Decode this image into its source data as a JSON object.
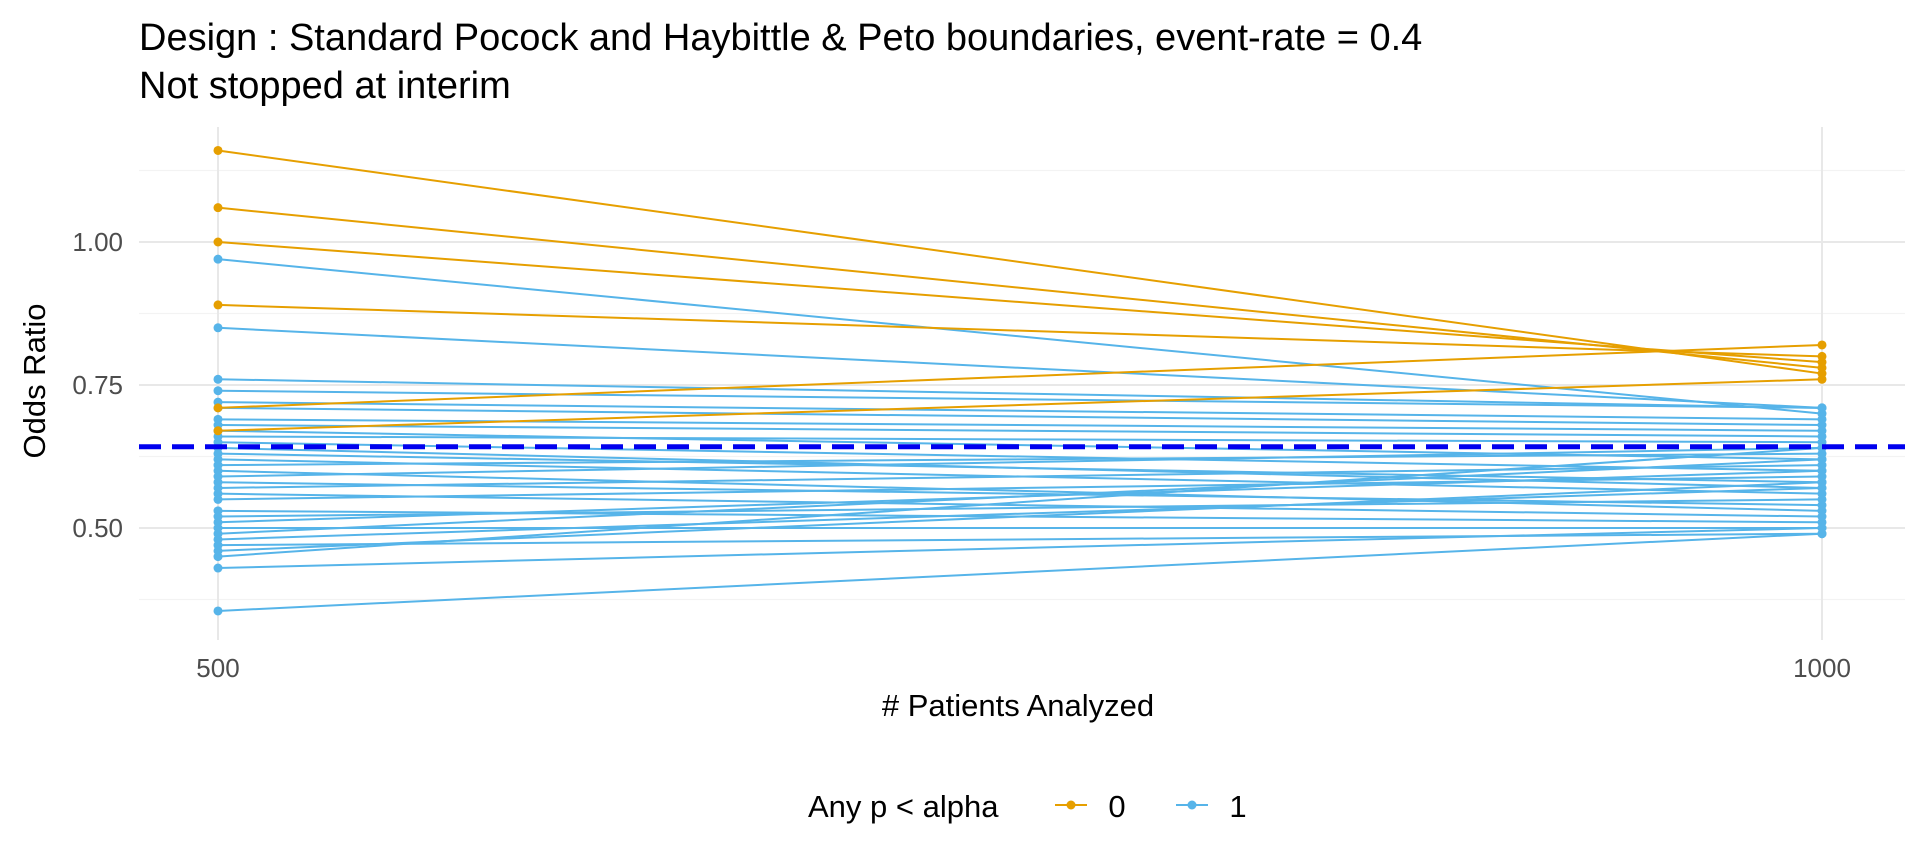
{
  "chart_data": {
    "type": "line",
    "title": "Design : Standard Pocock and Haybittle & Peto boundaries, event-rate = 0.4",
    "subtitle": "Not stopped at interim",
    "xlabel": "# Patients Analyzed",
    "ylabel": "Odds Ratio",
    "x_ticks": [
      500,
      1000
    ],
    "x_tick_labels": [
      "500",
      "1000"
    ],
    "y_ticks": [
      0.5,
      0.75,
      1.0
    ],
    "y_tick_labels": [
      "0.50",
      "0.75",
      "1.00"
    ],
    "xlim": [
      450,
      1025
    ],
    "ylim": [
      0.3,
      1.3
    ],
    "grid": true,
    "legend": {
      "title": "Any p < alpha",
      "position": "bottom",
      "entries": [
        {
          "label": "0",
          "color": "#E69F00"
        },
        {
          "label": "1",
          "color": "#56B4E9"
        }
      ]
    },
    "reference_line": {
      "y": 0.642,
      "style": "dashed",
      "color": "#0000EE"
    },
    "series": [
      {
        "group": "0",
        "x": [
          500,
          1000
        ],
        "y": [
          1.16,
          0.77
        ]
      },
      {
        "group": "0",
        "x": [
          500,
          1000
        ],
        "y": [
          1.06,
          0.78
        ]
      },
      {
        "group": "0",
        "x": [
          500,
          1000
        ],
        "y": [
          1.0,
          0.79
        ]
      },
      {
        "group": "0",
        "x": [
          500,
          1000
        ],
        "y": [
          0.89,
          0.8
        ]
      },
      {
        "group": "0",
        "x": [
          500,
          1000
        ],
        "y": [
          0.71,
          0.82
        ]
      },
      {
        "group": "0",
        "x": [
          500,
          1000
        ],
        "y": [
          0.67,
          0.76
        ]
      },
      {
        "group": "1",
        "x": [
          500,
          1000
        ],
        "y": [
          0.97,
          0.7
        ]
      },
      {
        "group": "1",
        "x": [
          500,
          1000
        ],
        "y": [
          0.85,
          0.71
        ]
      },
      {
        "group": "1",
        "x": [
          500,
          1000
        ],
        "y": [
          0.76,
          0.71
        ]
      },
      {
        "group": "1",
        "x": [
          500,
          1000
        ],
        "y": [
          0.74,
          0.71
        ]
      },
      {
        "group": "1",
        "x": [
          500,
          1000
        ],
        "y": [
          0.72,
          0.69
        ]
      },
      {
        "group": "1",
        "x": [
          500,
          1000
        ],
        "y": [
          0.71,
          0.68
        ]
      },
      {
        "group": "1",
        "x": [
          500,
          1000
        ],
        "y": [
          0.69,
          0.67
        ]
      },
      {
        "group": "1",
        "x": [
          500,
          1000
        ],
        "y": [
          0.68,
          0.66
        ]
      },
      {
        "group": "1",
        "x": [
          500,
          1000
        ],
        "y": [
          0.67,
          0.62
        ]
      },
      {
        "group": "1",
        "x": [
          500,
          1000
        ],
        "y": [
          0.66,
          0.65
        ]
      },
      {
        "group": "1",
        "x": [
          500,
          1000
        ],
        "y": [
          0.65,
          0.6
        ]
      },
      {
        "group": "1",
        "x": [
          500,
          1000
        ],
        "y": [
          0.64,
          0.57
        ]
      },
      {
        "group": "1",
        "x": [
          500,
          1000
        ],
        "y": [
          0.63,
          0.58
        ]
      },
      {
        "group": "1",
        "x": [
          500,
          1000
        ],
        "y": [
          0.62,
          0.56
        ]
      },
      {
        "group": "1",
        "x": [
          500,
          1000
        ],
        "y": [
          0.61,
          0.63
        ]
      },
      {
        "group": "1",
        "x": [
          500,
          1000
        ],
        "y": [
          0.6,
          0.53
        ]
      },
      {
        "group": "1",
        "x": [
          500,
          1000
        ],
        "y": [
          0.59,
          0.64
        ]
      },
      {
        "group": "1",
        "x": [
          500,
          1000
        ],
        "y": [
          0.58,
          0.54
        ]
      },
      {
        "group": "1",
        "x": [
          500,
          1000
        ],
        "y": [
          0.57,
          0.61
        ]
      },
      {
        "group": "1",
        "x": [
          500,
          1000
        ],
        "y": [
          0.56,
          0.52
        ]
      },
      {
        "group": "1",
        "x": [
          500,
          1000
        ],
        "y": [
          0.55,
          0.59
        ]
      },
      {
        "group": "1",
        "x": [
          500,
          1000
        ],
        "y": [
          0.53,
          0.51
        ]
      },
      {
        "group": "1",
        "x": [
          500,
          1000
        ],
        "y": [
          0.52,
          0.55
        ]
      },
      {
        "group": "1",
        "x": [
          500,
          1000
        ],
        "y": [
          0.51,
          0.6
        ]
      },
      {
        "group": "1",
        "x": [
          500,
          1000
        ],
        "y": [
          0.5,
          0.5
        ]
      },
      {
        "group": "1",
        "x": [
          500,
          1000
        ],
        "y": [
          0.49,
          0.62
        ]
      },
      {
        "group": "1",
        "x": [
          500,
          1000
        ],
        "y": [
          0.48,
          0.57
        ]
      },
      {
        "group": "1",
        "x": [
          500,
          1000
        ],
        "y": [
          0.47,
          0.49
        ]
      },
      {
        "group": "1",
        "x": [
          500,
          1000
        ],
        "y": [
          0.46,
          0.58
        ]
      },
      {
        "group": "1",
        "x": [
          500,
          1000
        ],
        "y": [
          0.45,
          0.64
        ]
      },
      {
        "group": "1",
        "x": [
          500,
          1000
        ],
        "y": [
          0.43,
          0.5
        ]
      },
      {
        "group": "1",
        "x": [
          500,
          1000
        ],
        "y": [
          0.355,
          0.49
        ]
      }
    ]
  }
}
